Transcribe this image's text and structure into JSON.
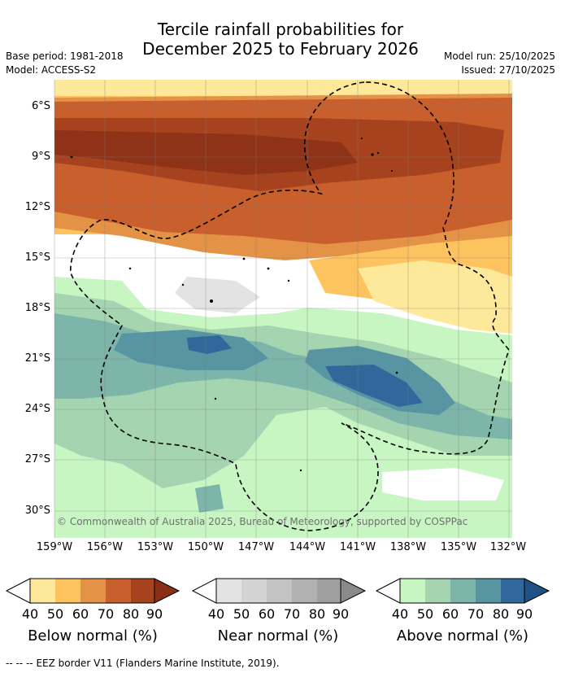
{
  "header": {
    "title_line1": "Tercile rainfall probabilities for",
    "title_line2": "December 2025 to February 2026",
    "base_period": "Base period: 1981-2018",
    "model": "Model: ACCESS-S2",
    "model_run": "Model run: 25/10/2025",
    "issued": "Issued: 27/10/2025"
  },
  "map": {
    "lat_labels": [
      "6°S",
      "9°S",
      "12°S",
      "15°S",
      "18°S",
      "21°S",
      "24°S",
      "27°S",
      "30°S"
    ],
    "lon_labels": [
      "159°W",
      "156°W",
      "153°W",
      "150°W",
      "147°W",
      "144°W",
      "141°W",
      "138°W",
      "135°W",
      "132°W"
    ],
    "copyright": "© Commonwealth of Australia 2025, Bureau of Meteorology, supported by COSPPac"
  },
  "legends": [
    {
      "id": "below",
      "title": "Below normal (%)",
      "ticks": [
        "40",
        "50",
        "60",
        "70",
        "80",
        "90"
      ],
      "colors": [
        "#fee89a",
        "#fdc35e",
        "#e49245",
        "#c85f2c",
        "#a7421f",
        "#8a2f16"
      ]
    },
    {
      "id": "near",
      "title": "Near normal (%)",
      "ticks": [
        "40",
        "50",
        "60",
        "70",
        "80",
        "90"
      ],
      "colors": [
        "#e3e3e3",
        "#d3d3d3",
        "#c3c3c3",
        "#b1b1b1",
        "#9f9f9f",
        "#8a8a8a"
      ]
    },
    {
      "id": "above",
      "title": "Above normal (%)",
      "ticks": [
        "40",
        "50",
        "60",
        "70",
        "80",
        "90"
      ],
      "colors": [
        "#c7f6c3",
        "#a4d4b0",
        "#7db5aa",
        "#5895a3",
        "#31679a",
        "#1f5086"
      ]
    }
  ],
  "footer": {
    "line_sample": "-- -- --",
    "text": "EEZ border V11 (Flanders Marine Institute, 2019)."
  }
}
